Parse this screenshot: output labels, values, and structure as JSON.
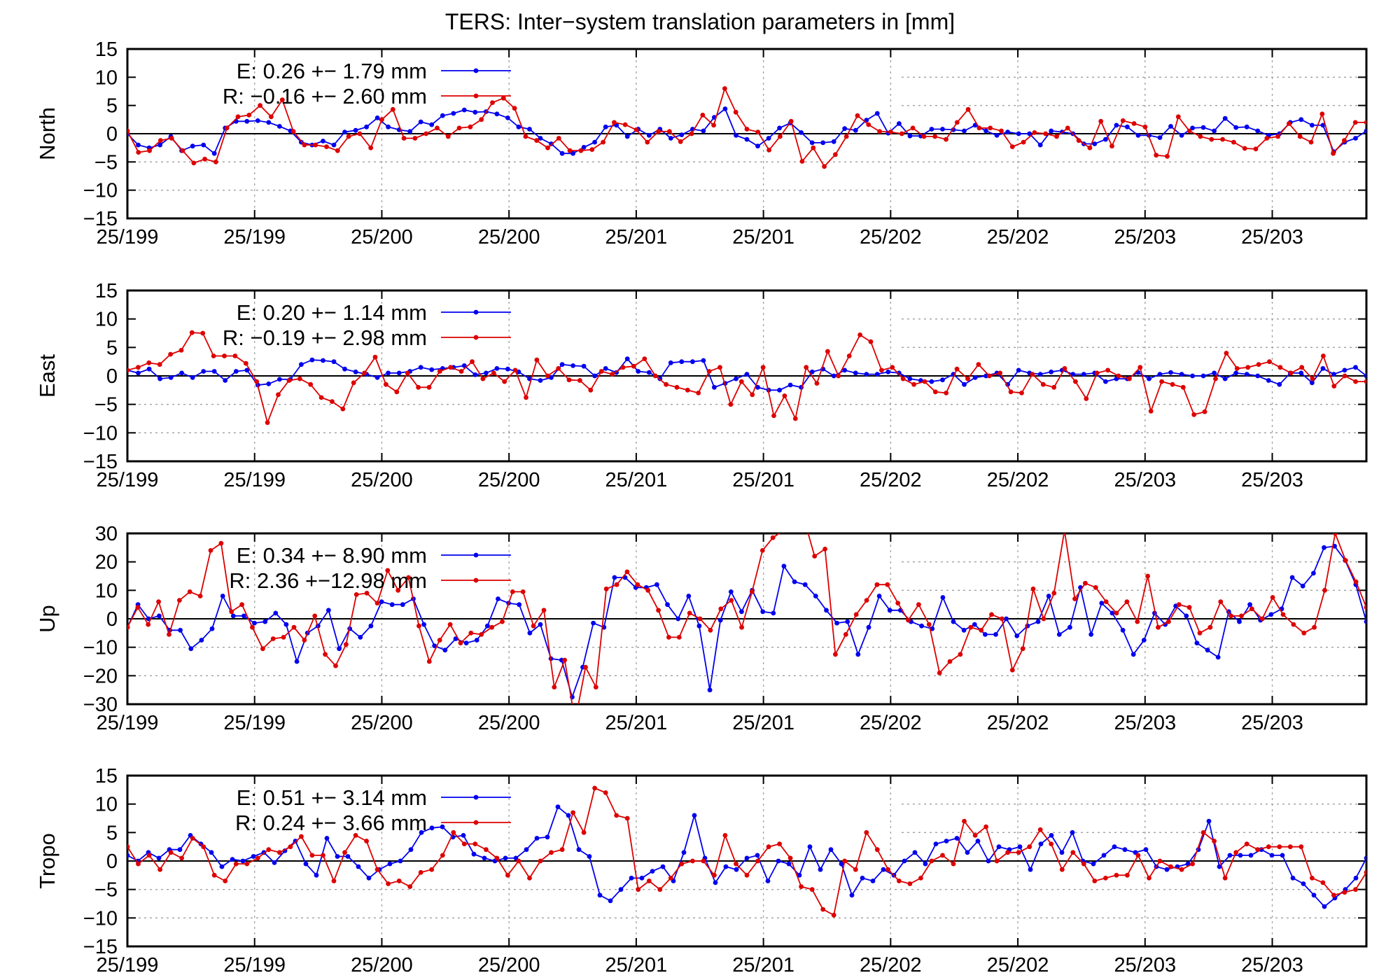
{
  "title": "TERS: Inter−system translation parameters in [mm]",
  "colors": {
    "E": "#0000ee",
    "R": "#dd0000",
    "axis": "#000000",
    "grid": "#a0a0a0"
  },
  "x_tick_labels": [
    "25/199",
    "25/199",
    "25/200",
    "25/200",
    "25/201",
    "25/201",
    "25/202",
    "25/202",
    "25/203",
    "25/203"
  ],
  "chart_data": [
    {
      "type": "line",
      "ylabel": "North",
      "ylim": [
        -15,
        15
      ],
      "yticks": [
        15,
        10,
        5,
        0,
        -5,
        -10,
        -15
      ],
      "ytick_labels": [
        "15",
        "10",
        "5",
        "0",
        "−5",
        "−10",
        "−15"
      ],
      "xlim": [
        0,
        117
      ],
      "grid": true,
      "legend_position": "top-left",
      "series": [
        {
          "name": "E",
          "stats_label": "E:   0.26 +− 1.79 mm",
          "values": [
            0,
            -2,
            -2.5,
            -2,
            -0.5,
            -3,
            -2.2,
            -2,
            -3.5,
            1,
            2.2,
            2.2,
            2.3,
            2,
            1.3,
            0.5,
            -1.5,
            -2,
            -1.3,
            -2,
            0.3,
            0.6,
            1.2,
            2.8,
            1.2,
            0.7,
            0.4,
            2.1,
            1.6,
            3.2,
            3.6,
            4.2,
            3.8,
            3.9,
            3.5,
            2.8,
            1.2,
            0.8,
            -0.8,
            -1.8,
            -3.5,
            -3.5,
            -2.4,
            -1.5,
            1.2,
            1.5,
            -0.5,
            0.8,
            -0.3,
            0.8,
            -0.8,
            -0.2,
            0.8,
            0.5,
            2.9,
            4.4,
            -0.3,
            -1,
            -2.2,
            -0.8,
            1,
            1.9,
            0.2,
            -1.6,
            -1.6,
            -1.4,
            0.9,
            0.6,
            2.4,
            3.6,
            0.1,
            1.8,
            -0.4,
            -0.4,
            0.8,
            0.8,
            0.7,
            0.5,
            1.5,
            0.5,
            -0.3,
            0.3,
            0,
            0,
            -2,
            0.5,
            0.3,
            0,
            -1.8,
            -1.8,
            -1,
            1.5,
            1.2,
            -0.3,
            -0.3,
            -0.7,
            1.3,
            -0.3,
            1,
            1.1,
            0.5,
            2.7,
            1.1,
            1.2,
            0.5,
            -0.3,
            0,
            2,
            2.5,
            1.5,
            1.5,
            -3.2,
            -1.5,
            -0.8,
            0.5
          ]
        },
        {
          "name": "R",
          "stats_label": "R:  −0.16 +− 2.60 mm",
          "values": [
            0.5,
            -3.3,
            -3,
            -1.2,
            -0.8,
            -3,
            -5.2,
            -4.5,
            -5,
            1,
            3,
            3.3,
            5,
            3,
            6,
            0.4,
            -2,
            -2,
            -2.3,
            -3,
            -0.5,
            0,
            -2.5,
            2.5,
            4.3,
            -0.8,
            -0.8,
            0,
            1,
            -0.5,
            1,
            1.2,
            2.5,
            5.5,
            6.3,
            4.5,
            -0.5,
            -1.2,
            -2.5,
            -0.8,
            -3,
            -3,
            -2.8,
            -1.5,
            2,
            1.6,
            0.7,
            -1.5,
            0.4,
            0.4,
            -1.4,
            0,
            3.3,
            1.5,
            8,
            3.8,
            0.8,
            0.3,
            -2.9,
            -0.5,
            2.2,
            -4.9,
            -2.5,
            -5.8,
            -3.7,
            -0.5,
            3.2,
            1.6,
            0.4,
            0.3,
            0,
            1,
            -0.5,
            -0.5,
            -1,
            2,
            4.3,
            1,
            1,
            0.5,
            -2.3,
            -1.5,
            0.2,
            0,
            -0.5,
            1,
            -1.2,
            -2.5,
            2.2,
            -2.2,
            2.3,
            1.8,
            1.2,
            -3.8,
            -4,
            3,
            0.5,
            -0.5,
            -1,
            -1,
            -1.5,
            -2.6,
            -2.7,
            -0.8,
            -0.5,
            1.8,
            -0.5,
            -1.5,
            3.5,
            -3.5,
            -1.2,
            2,
            2
          ]
        }
      ]
    },
    {
      "type": "line",
      "ylabel": "East",
      "ylim": [
        -15,
        15
      ],
      "yticks": [
        15,
        10,
        5,
        0,
        -5,
        -10,
        -15
      ],
      "ytick_labels": [
        "15",
        "10",
        "5",
        "0",
        "−5",
        "−10",
        "−15"
      ],
      "xlim": [
        0,
        117
      ],
      "grid": true,
      "legend_position": "top-left",
      "series": [
        {
          "name": "E",
          "stats_label": "E:   0.20 +− 1.14 mm",
          "values": [
            1,
            0.5,
            1.2,
            -0.5,
            -0.3,
            0.5,
            -0.3,
            0.8,
            0.8,
            -0.8,
            0.8,
            1,
            -1.6,
            -1.4,
            -0.6,
            -0.6,
            2,
            2.8,
            2.7,
            2.5,
            1.2,
            0.7,
            0.3,
            -0.3,
            0.5,
            0.5,
            0.8,
            1.5,
            1.1,
            1.3,
            1.5,
            1.8,
            0.2,
            0.5,
            1.3,
            1.2,
            0.7,
            -0.5,
            -0.8,
            -0.3,
            2,
            1.8,
            1.7,
            0,
            1.3,
            0.6,
            3,
            0.8,
            0.6,
            -0.5,
            2.3,
            2.5,
            2.5,
            2.7,
            -2,
            -1.3,
            -0.5,
            0.3,
            -2,
            -2.5,
            -2.5,
            -1.6,
            -2,
            0.7,
            1.2,
            0,
            1,
            0.5,
            0.3,
            0.3,
            0.7,
            0.5,
            -0.5,
            -0.8,
            -1,
            -0.7,
            0.3,
            -1.5,
            -0.3,
            0,
            0.5,
            -1.5,
            1,
            0.5,
            0.3,
            0.7,
            1,
            0.3,
            0.3,
            0.5,
            -1,
            -0.5,
            -0.5,
            0.6,
            -0.5,
            0.3,
            0.6,
            0.3,
            0,
            0,
            0.5,
            -0.5,
            0.5,
            0.3,
            0,
            -0.8,
            -1.5,
            0.5,
            0.5,
            -1.2,
            1.3,
            0.3,
            1,
            1.5,
            0
          ]
        },
        {
          "name": "R",
          "stats_label": "R:  −0.19 +− 2.98 mm",
          "values": [
            1,
            1.5,
            2.3,
            2,
            3.8,
            4.5,
            7.6,
            7.5,
            3.5,
            3.5,
            3.5,
            2.2,
            -1,
            -8.2,
            -3.3,
            -0.8,
            -0.5,
            -1.5,
            -3.8,
            -4.5,
            -5.8,
            -1.2,
            0.5,
            3.3,
            -1.5,
            -2.8,
            0.5,
            -2,
            -2,
            0.8,
            1.5,
            0.8,
            2.5,
            -0.5,
            0.5,
            -1,
            1,
            -3.8,
            2.8,
            0,
            1.3,
            -0.7,
            -0.8,
            -2.5,
            0.8,
            0.3,
            1.5,
            1.7,
            3,
            0,
            -1.5,
            -2,
            -2.5,
            -3,
            0.8,
            1.5,
            -5,
            -1,
            -3.3,
            1.5,
            -7,
            -3.5,
            -7.5,
            1.5,
            -1.3,
            4.3,
            0,
            3.5,
            7.2,
            6,
            1,
            1.5,
            -0.5,
            -1.5,
            -1,
            -2.8,
            -3,
            1.2,
            -0.5,
            2,
            0,
            0.5,
            -2.8,
            -3,
            0.3,
            -1.5,
            -2,
            1.3,
            -1,
            -4,
            0.5,
            1,
            0,
            -0.5,
            1.5,
            -6.2,
            -1,
            -1.5,
            -2,
            -6.8,
            -6.3,
            -0.5,
            4,
            1.3,
            1.5,
            2,
            2.5,
            1.5,
            0.5,
            1.5,
            -0.5,
            3.5,
            -1.8,
            0,
            -1,
            -1
          ]
        }
      ]
    },
    {
      "type": "line",
      "ylabel": "Up",
      "ylim": [
        -30,
        30
      ],
      "yticks": [
        30,
        20,
        10,
        0,
        -10,
        -20,
        -30
      ],
      "ytick_labels": [
        "30",
        "20",
        "10",
        "0",
        "−10",
        "−20",
        "−30"
      ],
      "xlim": [
        0,
        117
      ],
      "grid": true,
      "legend_position": "top-left",
      "series": [
        {
          "name": "E",
          "stats_label": "E:   0.34 +− 8.90 mm",
          "values": [
            -3,
            5,
            0,
            1,
            -4,
            -4,
            -10.5,
            -7.5,
            -3.5,
            8,
            1,
            1,
            -1.5,
            -1,
            2,
            -2,
            -15,
            -5,
            -2.5,
            3,
            -10.5,
            -3.5,
            -6.5,
            -2.5,
            6,
            5,
            5,
            7,
            -2,
            -9.5,
            -11,
            -7,
            -8.5,
            -7.5,
            -2.5,
            7,
            5.5,
            5,
            -5,
            -2,
            -14,
            -14.5,
            -27.5,
            -17,
            -1.5,
            -3,
            14.5,
            14.5,
            11,
            11,
            12,
            5,
            0,
            8,
            -2.5,
            -25,
            -0.5,
            9.5,
            2.5,
            10,
            2.5,
            2,
            18.5,
            13,
            12,
            8,
            3,
            -1.5,
            -1,
            -12.5,
            -3,
            8,
            3,
            3,
            -1,
            -2.5,
            -3.5,
            7.5,
            -1,
            -4,
            -2,
            -5.5,
            -5.5,
            0,
            -6,
            -2.5,
            -1,
            8,
            -5.5,
            -3,
            11,
            -5.5,
            5.5,
            2,
            -4,
            -12.5,
            -7.5,
            2,
            -2,
            4.5,
            1,
            -8.5,
            -11,
            -13.5,
            2.5,
            -1,
            5,
            -0.5,
            1.5,
            3.5,
            14.5,
            11.5,
            16,
            25,
            25.5,
            20.5,
            12,
            -1
          ]
        },
        {
          "name": "R",
          "stats_label": "R:  2.36 +−12.98 mm",
          "values": [
            -3,
            4,
            -2,
            6,
            -5.5,
            6.5,
            9.5,
            8,
            24,
            26.5,
            2.5,
            5,
            -3,
            -10.5,
            -7,
            -6.5,
            -3,
            -7.5,
            1,
            -12.5,
            -16.5,
            -9,
            8.5,
            9,
            5.5,
            17,
            10,
            14.5,
            -2.5,
            -15,
            -7.5,
            -2,
            -8.5,
            -5,
            -5.5,
            -3,
            -1,
            9.5,
            9.5,
            -2.5,
            3,
            -24,
            -14.5,
            -36,
            -17,
            -24,
            10.5,
            12,
            16.5,
            12,
            10,
            3,
            -6.5,
            -6.5,
            2,
            0,
            -4,
            3.5,
            6.5,
            -3,
            9.5,
            24,
            28.5,
            31,
            40,
            35,
            22,
            24.5,
            -12.5,
            -5.5,
            1.5,
            6.5,
            12,
            12,
            5.5,
            -0.5,
            5,
            -2,
            -19,
            -15,
            -12.5,
            -3,
            -4,
            1.5,
            0,
            -18,
            -10.5,
            10.5,
            0,
            9,
            31,
            7,
            12.5,
            11,
            6,
            2,
            6,
            -1,
            15,
            -3,
            -1,
            5,
            4,
            -5,
            -3,
            6,
            1,
            1,
            3.5,
            0,
            7.5,
            1.5,
            -2,
            -5,
            -3,
            10,
            30,
            20.5,
            13,
            4
          ]
        }
      ]
    },
    {
      "type": "line",
      "ylabel": "Tropo",
      "ylim": [
        -15,
        15
      ],
      "yticks": [
        15,
        10,
        5,
        0,
        -5,
        -10,
        -15
      ],
      "ytick_labels": [
        "15",
        "10",
        "5",
        "0",
        "−5",
        "−10",
        "−15"
      ],
      "xlim": [
        0,
        117
      ],
      "grid": true,
      "legend_position": "top-left",
      "series": [
        {
          "name": "E",
          "stats_label": "E:   0.51 +− 3.14 mm",
          "values": [
            1,
            0,
            1.5,
            0.5,
            2,
            2,
            4.5,
            3,
            1.5,
            -1,
            0.3,
            0,
            0.8,
            1.5,
            -0.3,
            1.8,
            3.5,
            -0.5,
            -2.5,
            4,
            0.8,
            0.8,
            -1,
            -3,
            -1.5,
            -0.5,
            0,
            2,
            5,
            5.8,
            6,
            4.2,
            4.5,
            1.2,
            0.5,
            0,
            0.5,
            0.5,
            2,
            4,
            4.2,
            9.5,
            8,
            2,
            0.8,
            -6,
            -7,
            -5,
            -3,
            -3,
            -1.8,
            -1,
            -3.5,
            1.5,
            8,
            0.5,
            -3.8,
            -1,
            -1.5,
            0.5,
            1,
            -3.5,
            0,
            -0.5,
            -2.5,
            2.5,
            -1.5,
            2,
            -0.5,
            -6,
            -3,
            -3.5,
            -1.5,
            -2.5,
            0,
            1.5,
            -0.5,
            3,
            3.5,
            4,
            1.5,
            3.5,
            0,
            2.5,
            2,
            2.5,
            -1.5,
            3,
            4.5,
            1.5,
            5,
            0,
            -0.5,
            1,
            2.5,
            2,
            1.5,
            2,
            -1,
            -1.5,
            -1,
            -0.5,
            2,
            7,
            -1,
            1,
            1,
            1,
            2,
            1,
            1,
            -3,
            -4,
            -6,
            -8,
            -6.5,
            -5,
            -3,
            0.5
          ]
        },
        {
          "name": "R",
          "stats_label": "R:  0.24 +− 3.66 mm",
          "values": [
            2.5,
            -0.5,
            1,
            -1.5,
            1.5,
            0.5,
            4,
            2.5,
            -2.5,
            -3.5,
            -0.5,
            -0.5,
            0.5,
            2,
            1.5,
            2.5,
            4.3,
            1,
            1,
            -3.5,
            1.5,
            4.5,
            3.5,
            -1.5,
            -4,
            -3.5,
            -4.5,
            -2,
            -1.5,
            1,
            5,
            3,
            3,
            2,
            0.5,
            -2.5,
            0,
            -3,
            0,
            1.5,
            2,
            8.5,
            5,
            12.8,
            12,
            8,
            7.5,
            -5,
            -3.5,
            -5,
            -3,
            -0.5,
            0,
            0,
            -2.5,
            4.5,
            -0.5,
            -2.5,
            0,
            2.5,
            3,
            0.5,
            -4.5,
            -5,
            -8.5,
            -9.5,
            0,
            -1.5,
            5,
            2,
            -1.5,
            -3.5,
            -4,
            -3,
            0,
            1,
            -0.5,
            7,
            4.5,
            6,
            0,
            1.5,
            1.5,
            2.5,
            5.5,
            3,
            -1.5,
            1.5,
            -0.5,
            -3.5,
            -3,
            -2.5,
            -2.5,
            1,
            -3,
            0,
            -1,
            -1.5,
            -0.5,
            5,
            3.5,
            -3,
            1.5,
            3,
            2,
            2.5,
            2.5,
            2.5,
            2.5,
            -3,
            -3.8,
            -6,
            -5.5,
            -5,
            -2
          ]
        }
      ]
    }
  ]
}
